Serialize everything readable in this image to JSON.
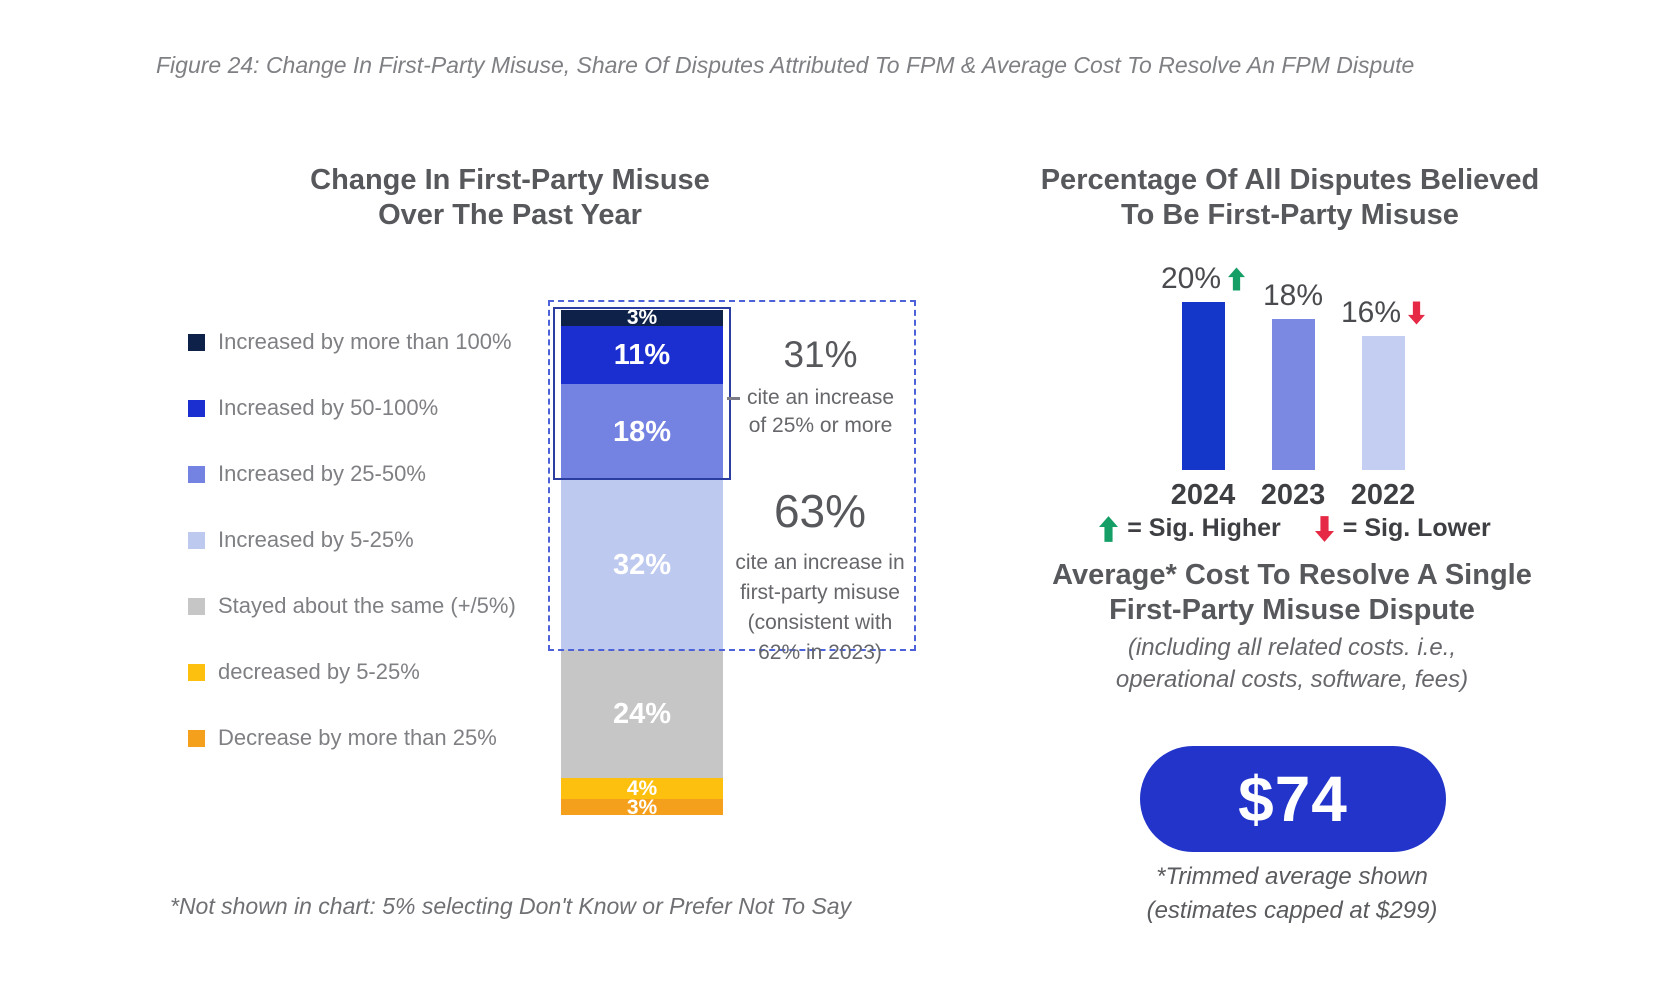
{
  "figure_title": "Figure 24: Change In First-Party Misuse, Share Of Disputes Attributed To FPM & Average Cost To Resolve An FPM Dispute",
  "chart_data": [
    {
      "type": "bar",
      "subtype": "stacked_single_column",
      "title": "Change In First-Party Misuse Over The Past Year",
      "unit": "%",
      "segments": [
        {
          "label": "Increased by more than 100%",
          "value": 3,
          "color": "#0d2149"
        },
        {
          "label": "Increased by 50-100%",
          "value": 11,
          "color": "#1b2fd1"
        },
        {
          "label": "Increased by 25-50%",
          "value": 18,
          "color": "#7482e2"
        },
        {
          "label": "Increased by 5-25%",
          "value": 32,
          "color": "#bec9f0"
        },
        {
          "label": "Stayed about the same (+/5%)",
          "value": 24,
          "color": "#c7c6c6"
        },
        {
          "label": "decreased by 5-25%",
          "value": 4,
          "color": "#fec00f"
        },
        {
          "label": "Decrease by more than 25%",
          "value": 3,
          "color": "#f5a01c"
        }
      ],
      "annotations": [
        {
          "value": "31%",
          "lines": [
            "cite an increase",
            "of 25% or more"
          ]
        },
        {
          "value": "63%",
          "lines": [
            "cite an increase in",
            "first-party misuse",
            "(consistent with",
            "62% in 2023)"
          ]
        }
      ],
      "footnote": "*Not shown in chart:  5% selecting Don't Know or Prefer Not To Say",
      "legend_position": "left"
    },
    {
      "type": "bar",
      "title": "Percentage Of All Disputes Believed To Be First-Party Misuse",
      "categories": [
        "2024",
        "2023",
        "2022"
      ],
      "values": [
        20,
        18,
        16
      ],
      "value_labels": [
        "20%",
        "18%",
        "16%"
      ],
      "bar_colors": [
        "#1436c9",
        "#7b89e2",
        "#c4cdf2"
      ],
      "markers": [
        "sig_higher",
        null,
        "sig_lower"
      ],
      "ylim": [
        0,
        20
      ],
      "grid": false,
      "legend": [
        {
          "icon": "up-arrow",
          "color": "#169e67",
          "label": "= Sig. Higher"
        },
        {
          "icon": "down-arrow",
          "color": "#e62945",
          "label": "= Sig. Lower"
        }
      ]
    }
  ],
  "cost_panel": {
    "title": "Average* Cost To Resolve A Single First-Party Misuse Dispute",
    "subtitle_lines": [
      "(including all related costs. i.e.,",
      "operational costs, software, fees)"
    ],
    "value": "$74",
    "pill_color": "#2334ca",
    "footnote_lines": [
      "*Trimmed average shown",
      "(estimates capped at $299)"
    ]
  }
}
